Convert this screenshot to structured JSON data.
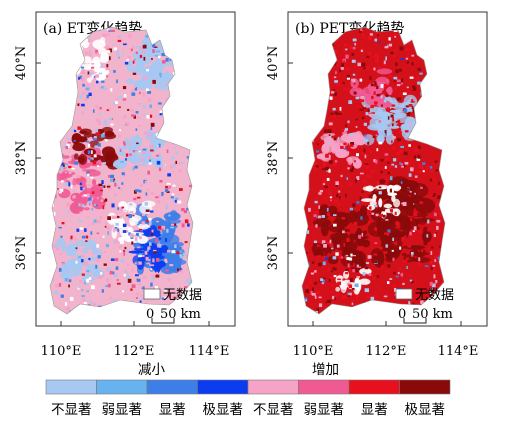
{
  "panels": [
    {
      "id": "et",
      "title": "(a) ET变化趋势",
      "xticks": [
        "110°E",
        "112°E",
        "114°E"
      ],
      "yticks": [
        "40°N",
        "38°N",
        "36°N"
      ],
      "nodata_label": "无数据",
      "scale_text_left": "0",
      "scale_text_right": "50 km"
    },
    {
      "id": "pet",
      "title": "(b) PET变化趋势",
      "xticks": [
        "110°E",
        "112°E",
        "114°E"
      ],
      "yticks": [
        "40°N",
        "38°N",
        "36°N"
      ],
      "nodata_label": "无数据",
      "scale_text_left": "0",
      "scale_text_right": "50 km"
    }
  ],
  "legend": {
    "group_left": "减小",
    "group_right": "增加",
    "classes": [
      {
        "label": "不显著",
        "color": "#a6c8f2"
      },
      {
        "label": "弱显著",
        "color": "#66b3f0"
      },
      {
        "label": "显著",
        "color": "#3d7ee8"
      },
      {
        "label": "极显著",
        "color": "#0b3cf0"
      },
      {
        "label": "不显著",
        "color": "#f5a3c7"
      },
      {
        "label": "弱显著",
        "color": "#f05a93"
      },
      {
        "label": "显著",
        "color": "#e8101e"
      },
      {
        "label": "极显著",
        "color": "#8a0a0a"
      }
    ]
  },
  "map_colors": {
    "et_base": "#f2b3cc",
    "pet_base": "#d4101a"
  }
}
